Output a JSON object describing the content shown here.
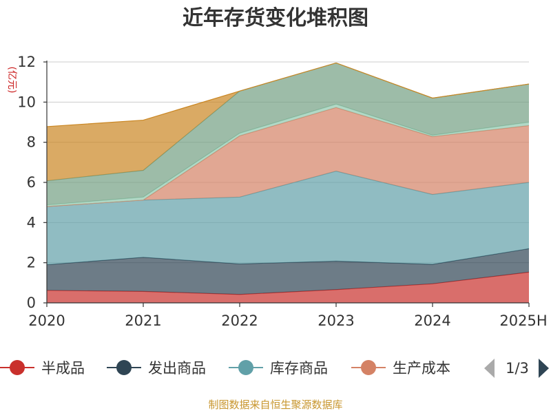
{
  "chart_data": {
    "type": "area",
    "stacked": true,
    "title": "近年存货变化堆积图",
    "ylabel": "(亿元)",
    "xlabel": "",
    "categories": [
      "2020",
      "2021",
      "2022",
      "2023",
      "2024",
      "2025H"
    ],
    "ylim": [
      0,
      12
    ],
    "yticks": [
      "0",
      "2",
      "4",
      "6",
      "8",
      "10",
      "12"
    ],
    "grid": true,
    "legend_position": "bottom",
    "series": [
      {
        "name": "半成品",
        "color": "#c9302c",
        "values": [
          0.62,
          0.57,
          0.42,
          0.66,
          0.95,
          1.53
        ]
      },
      {
        "name": "发出商品",
        "color": "#2f4554",
        "values": [
          1.28,
          1.7,
          1.52,
          1.42,
          0.97,
          1.17
        ]
      },
      {
        "name": "库存商品",
        "color": "#61a0a8",
        "values": [
          2.9,
          2.85,
          3.33,
          4.48,
          3.48,
          3.3
        ]
      },
      {
        "name": "生产成本",
        "color": "#d48265",
        "values": [
          0.0,
          0.0,
          3.05,
          3.17,
          2.88,
          2.83
        ]
      },
      {
        "name": "",
        "color": "#91c7ae",
        "values": [
          0.08,
          0.15,
          0.13,
          0.17,
          0.07,
          0.17
        ]
      },
      {
        "name": "",
        "color": "#749f83",
        "values": [
          1.2,
          1.33,
          2.1,
          2.05,
          1.85,
          1.9
        ]
      },
      {
        "name": "",
        "color": "#ca8622",
        "values": [
          2.7,
          2.5,
          0.0,
          0.0,
          0.0,
          0.0
        ]
      }
    ],
    "legend_visible": [
      "半成品",
      "发出商品",
      "库存商品",
      "生产成本"
    ]
  },
  "legend_pager": {
    "text": "1/3",
    "prev_color": "#aaaaaa",
    "next_color": "#2f4554"
  },
  "source_note": "制图数据来自恒生聚源数据库"
}
